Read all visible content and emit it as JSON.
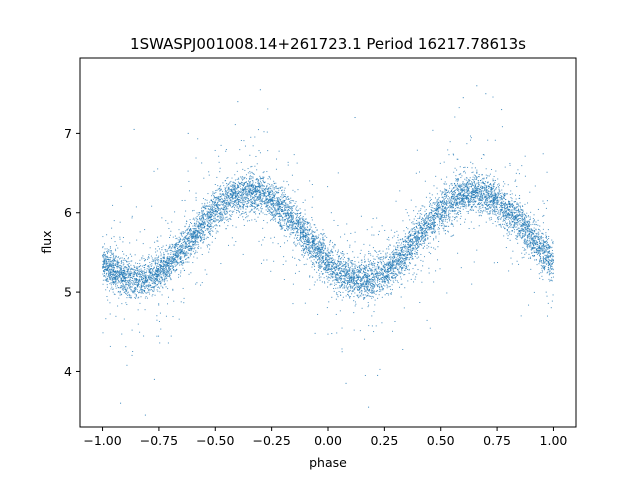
{
  "chart_data": {
    "type": "scatter",
    "title": "1SWASPJ001008.14+261723.1 Period 16217.78613s",
    "xlabel": "phase",
    "ylabel": "flux",
    "xlim": [
      -1.1,
      1.1
    ],
    "ylim": [
      3.3,
      7.95
    ],
    "xticks": [
      -1.0,
      -0.75,
      -0.5,
      -0.25,
      0.0,
      0.25,
      0.5,
      0.75,
      1.0
    ],
    "xtick_labels": [
      "−1.00",
      "−0.75",
      "−0.50",
      "−0.25",
      "0.00",
      "0.25",
      "0.50",
      "0.75",
      "1.00"
    ],
    "yticks": [
      4,
      5,
      6,
      7
    ],
    "ytick_labels": [
      "4",
      "5",
      "6",
      "7"
    ],
    "grid": false,
    "marker_color": "#1f77b4",
    "model": {
      "description_of_visible_trend": "sinusoidal light curve, two cycles over phase -1..1",
      "mean_flux": 5.7,
      "amplitude": 0.55,
      "period_in_phase": 1.0,
      "peak_phase": -0.35,
      "minimum_phase": 0.15,
      "scatter": 0.12
    },
    "sampled_points": {
      "x": [
        -1.0,
        -0.9,
        -0.85,
        -0.75,
        -0.65,
        -0.55,
        -0.45,
        -0.35,
        -0.25,
        -0.15,
        -0.05,
        0.05,
        0.15,
        0.25,
        0.35,
        0.45,
        0.55,
        0.65,
        0.75,
        0.85,
        0.95,
        1.0
      ],
      "y": [
        5.35,
        5.2,
        5.15,
        5.3,
        5.55,
        5.85,
        6.15,
        6.28,
        6.1,
        5.85,
        5.55,
        5.25,
        5.15,
        5.35,
        5.6,
        5.95,
        6.2,
        6.28,
        6.1,
        5.85,
        5.6,
        5.5
      ]
    },
    "outliers": {
      "x": [
        -0.92,
        -0.81,
        -0.77,
        -0.62,
        -0.4,
        -0.3,
        0.08,
        0.18,
        0.22,
        0.6,
        0.66,
        0.77,
        -0.86,
        0.12,
        0.7
      ],
      "y": [
        3.6,
        3.45,
        3.9,
        7.0,
        7.4,
        7.55,
        3.85,
        3.55,
        3.95,
        7.45,
        7.6,
        7.3,
        7.05,
        7.2,
        7.5
      ]
    }
  }
}
